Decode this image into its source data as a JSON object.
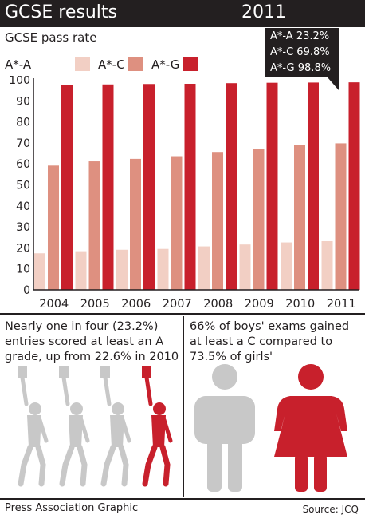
{
  "header": {
    "title": "GCSE results",
    "year": "2011"
  },
  "subtitle": "GCSE pass rate",
  "legend": [
    {
      "label": "A*-A",
      "color": "#f2cfc4"
    },
    {
      "label": "A*-C",
      "color": "#de9080"
    },
    {
      "label": "A*-G",
      "color": "#c8202c"
    }
  ],
  "callout": {
    "lines": [
      "A*-A 23.2%",
      "A*-C 69.8%",
      "A*-G 98.8%"
    ]
  },
  "chart_data": {
    "type": "bar",
    "title": "GCSE pass rate",
    "categories": [
      "2004",
      "2005",
      "2006",
      "2007",
      "2008",
      "2009",
      "2010",
      "2011"
    ],
    "series": [
      {
        "name": "A*-A",
        "color": "#f2cfc4",
        "values": [
          17.4,
          18.4,
          19.1,
          19.5,
          20.7,
          21.6,
          22.6,
          23.2
        ]
      },
      {
        "name": "A*-C",
        "color": "#de9080",
        "values": [
          59.2,
          61.2,
          62.4,
          63.3,
          65.7,
          67.1,
          69.1,
          69.8
        ]
      },
      {
        "name": "A*-G",
        "color": "#c8202c",
        "values": [
          97.6,
          97.8,
          98.0,
          98.1,
          98.4,
          98.6,
          98.7,
          98.8
        ]
      }
    ],
    "ylim": [
      0,
      100
    ],
    "yticks": [
      0,
      10,
      20,
      30,
      40,
      50,
      60,
      70,
      80,
      90,
      100
    ],
    "grid": false,
    "legend_position": "top-left"
  },
  "left_text": "Nearly one in four (23.2%) entries scored at least an A grade, up from 22.6% in 2010",
  "right_text": "66% of boys' exams gained at least a C compared to 73.5% of girls'",
  "figures": {
    "students": [
      "student-figure",
      "student-figure",
      "student-figure",
      "student-figure-highlighted"
    ],
    "boy_icon": "boy-icon",
    "girl_icon": "girl-icon",
    "colors": {
      "grey": "#c8c8c8",
      "red": "#c8202c"
    }
  },
  "footer": {
    "credit": "Press Association Graphic",
    "source": "Source: JCQ"
  }
}
